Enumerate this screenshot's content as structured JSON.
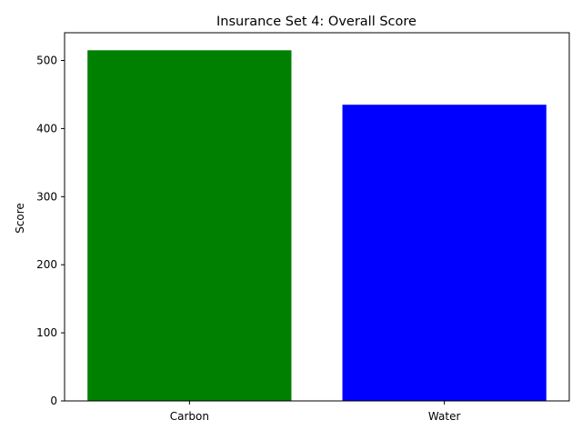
{
  "chart_data": {
    "type": "bar",
    "title": "Insurance Set 4: Overall Score",
    "xlabel": "",
    "ylabel": "Score",
    "categories": [
      "Carbon",
      "Water"
    ],
    "values": [
      515,
      435
    ],
    "colors": [
      "#008000",
      "#0000ff"
    ],
    "ylim": [
      0,
      540.75
    ],
    "yticks": [
      0,
      100,
      200,
      300,
      400,
      500
    ],
    "grid": false
  }
}
